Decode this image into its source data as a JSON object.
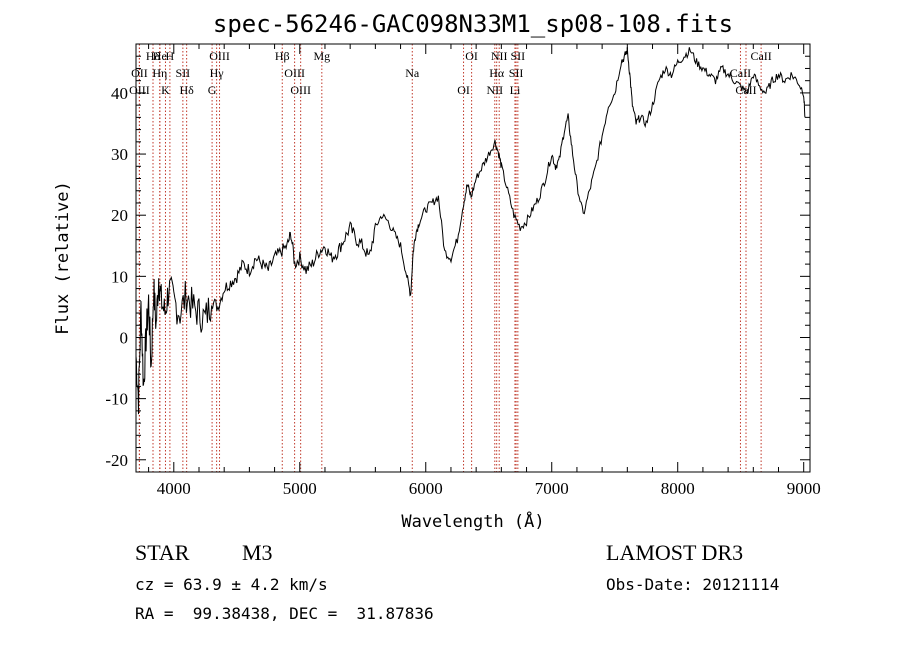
{
  "chart_data": {
    "type": "line",
    "title": "spec-56246-GAC098N33M1_sp08-108.fits",
    "xlabel": "Wavelength (Å)",
    "ylabel": "Flux (relative)",
    "xlim": [
      3700,
      9050
    ],
    "ylim": [
      -22,
      48
    ],
    "xticks": [
      4000,
      5000,
      6000,
      7000,
      8000,
      9000
    ],
    "yticks": [
      -20,
      -10,
      0,
      10,
      20,
      30,
      40
    ],
    "series": [
      {
        "name": "flux",
        "x": [
          3700,
          3720,
          3740,
          3760,
          3780,
          3800,
          3820,
          3840,
          3860,
          3880,
          3900,
          3930,
          3960,
          4000,
          4050,
          4100,
          4150,
          4200,
          4250,
          4300,
          4350,
          4400,
          4450,
          4500,
          4550,
          4600,
          4650,
          4700,
          4750,
          4800,
          4850,
          4900,
          4930,
          4960,
          5000,
          5050,
          5100,
          5150,
          5200,
          5250,
          5300,
          5350,
          5400,
          5450,
          5500,
          5550,
          5600,
          5650,
          5700,
          5750,
          5800,
          5850,
          5880,
          5900,
          5920,
          5950,
          6000,
          6050,
          6100,
          6150,
          6200,
          6250,
          6300,
          6330,
          6360,
          6400,
          6450,
          6500,
          6550,
          6580,
          6600,
          6650,
          6700,
          6750,
          6800,
          6850,
          6900,
          6950,
          7000,
          7030,
          7060,
          7100,
          7130,
          7160,
          7200,
          7250,
          7300,
          7350,
          7400,
          7450,
          7500,
          7550,
          7580,
          7600,
          7620,
          7640,
          7670,
          7700,
          7750,
          7800,
          7850,
          7900,
          7950,
          8000,
          8050,
          8100,
          8150,
          8200,
          8250,
          8300,
          8350,
          8400,
          8450,
          8500,
          8550,
          8600,
          8650,
          8700,
          8750,
          8800,
          8850,
          8900,
          8950,
          9000,
          9010
        ],
        "y": [
          -3,
          -10,
          5,
          -8,
          0,
          6,
          -5,
          8,
          2,
          10,
          6,
          4,
          8,
          6,
          4,
          7,
          5,
          4,
          3,
          6,
          5,
          8,
          9,
          10,
          12,
          11,
          13,
          12,
          11,
          13,
          14,
          15,
          17,
          12,
          13,
          11,
          12,
          14,
          15,
          13,
          14,
          16,
          18,
          16,
          15,
          13,
          18,
          20,
          19,
          17,
          15,
          10,
          7,
          14,
          17,
          19,
          21,
          22,
          23,
          14,
          13,
          16,
          22,
          25,
          23,
          26,
          28,
          30,
          32,
          30,
          28,
          24,
          20,
          18,
          19,
          21,
          23,
          26,
          30,
          28,
          29,
          34,
          36,
          31,
          25,
          20,
          24,
          28,
          33,
          38,
          40,
          45,
          46,
          47,
          43,
          38,
          35,
          36,
          35,
          38,
          42,
          44,
          43,
          45,
          46,
          47,
          45,
          44,
          43,
          42,
          44,
          43,
          42,
          41,
          40,
          43,
          41,
          40,
          42,
          43,
          42,
          43,
          42,
          40,
          36
        ]
      }
    ],
    "line_markers": [
      {
        "label": "Hδ",
        "wavelength": 3835
      },
      {
        "label": "OII",
        "wavelength": 3727
      },
      {
        "label": "OIII",
        "wavelength": 3727
      },
      {
        "label": "He",
        "wavelength": 3889
      },
      {
        "label": "Hη",
        "wavelength": 3889
      },
      {
        "label": "K",
        "wavelength": 3934
      },
      {
        "label": "H",
        "wavelength": 3969
      },
      {
        "label": "SII",
        "wavelength": 4072
      },
      {
        "label": "Hδ",
        "wavelength": 4102
      },
      {
        "label": "OIII",
        "wavelength": 4363
      },
      {
        "label": "Hγ",
        "wavelength": 4340
      },
      {
        "label": "G",
        "wavelength": 4304
      },
      {
        "label": "Hβ",
        "wavelength": 4861
      },
      {
        "label": "OIII",
        "wavelength": 4959
      },
      {
        "label": "OIII",
        "wavelength": 5007
      },
      {
        "label": "Mg",
        "wavelength": 5175
      },
      {
        "label": "Na",
        "wavelength": 5893
      },
      {
        "label": "OI",
        "wavelength": 6300
      },
      {
        "label": "OI",
        "wavelength": 6364
      },
      {
        "label": "Hα",
        "wavelength": 6563
      },
      {
        "label": "NII",
        "wavelength": 6548
      },
      {
        "label": "NII",
        "wavelength": 6583
      },
      {
        "label": "SII",
        "wavelength": 6717
      },
      {
        "label": "Li",
        "wavelength": 6708
      },
      {
        "label": "SII",
        "wavelength": 6731
      },
      {
        "label": "CaII",
        "wavelength": 8498
      },
      {
        "label": "CaII",
        "wavelength": 8542
      },
      {
        "label": "CaII",
        "wavelength": 8662
      }
    ]
  },
  "info": {
    "class": "STAR",
    "subclass": "M3",
    "survey": "LAMOST DR3",
    "cz": "cz = 63.9 ± 4.2 km/s",
    "obs_date": "Obs-Date: 20121114",
    "radec": "RA =  99.38438, DEC =  31.87836"
  }
}
